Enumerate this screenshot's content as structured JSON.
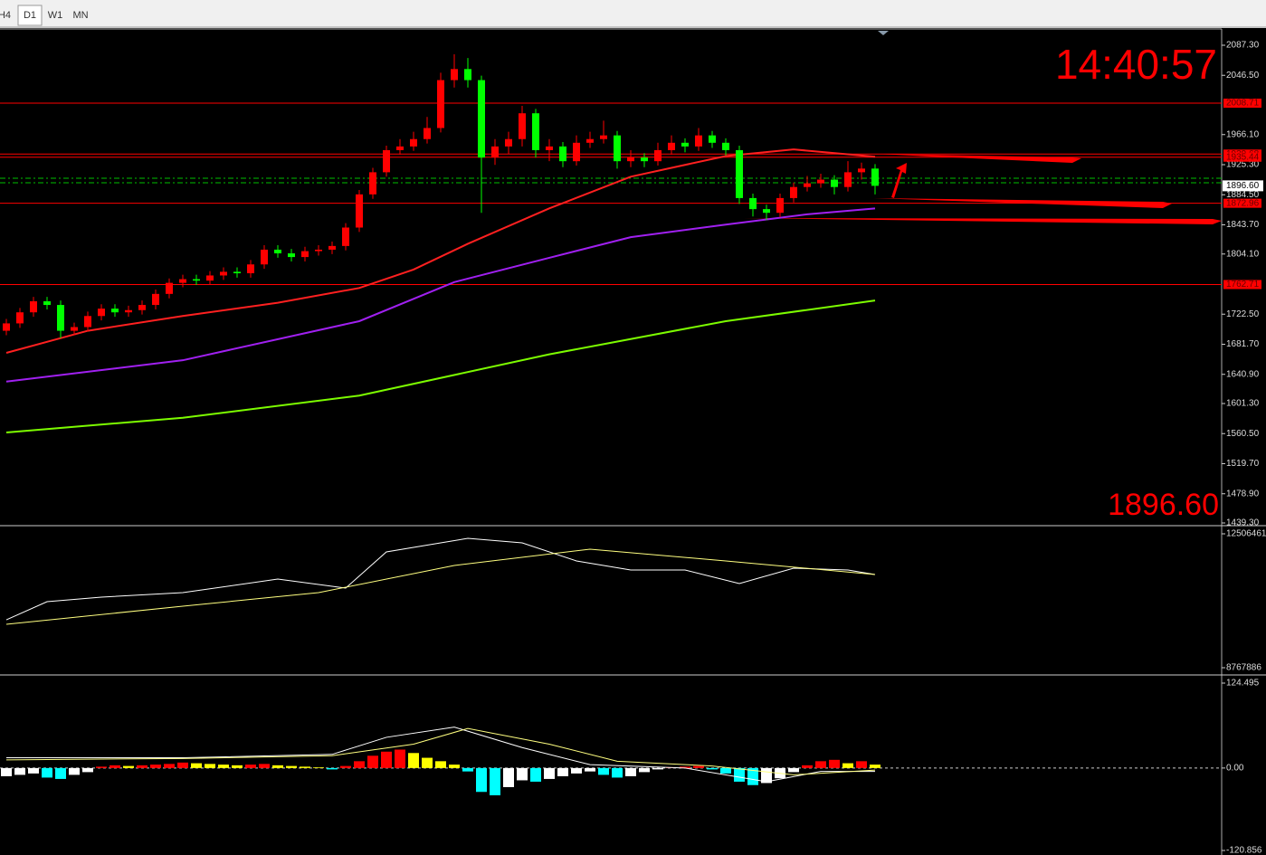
{
  "toolbar": {
    "tabs": [
      "H4",
      "D1",
      "W1",
      "MN"
    ],
    "active": 1
  },
  "clock": "14:40:57",
  "price_chart": {
    "type": "candlestick",
    "ylim": [
      1439.3,
      2087.3
    ],
    "yticks": [
      {
        "value": 2087.3,
        "label": "2087.30"
      },
      {
        "value": 2046.5,
        "label": "2046.50"
      },
      {
        "value": 1966.1,
        "label": "1966.10"
      },
      {
        "value": 1925.3,
        "label": "1925.30"
      },
      {
        "value": 1884.5,
        "label": "1884.50"
      },
      {
        "value": 1843.7,
        "label": "1843.70"
      },
      {
        "value": 1804.1,
        "label": "1804.10"
      },
      {
        "value": 1722.5,
        "label": "1722.50"
      },
      {
        "value": 1681.7,
        "label": "1681.70"
      },
      {
        "value": 1640.9,
        "label": "1640.90"
      },
      {
        "value": 1601.3,
        "label": "1601.30"
      },
      {
        "value": 1560.5,
        "label": "1560.50"
      },
      {
        "value": 1519.7,
        "label": "1519.70"
      },
      {
        "value": 1478.9,
        "label": "1478.90"
      },
      {
        "value": 1439.3,
        "label": "1439.30"
      }
    ],
    "levels": [
      2008.71,
      1939.68,
      1935.44,
      1872.96,
      1762.71
    ],
    "level_color": "#ff0000",
    "bid": {
      "value": 1896.6,
      "label": "1896.60"
    },
    "candle_colors": {
      "up": "#ff0000",
      "down": "#00ff00"
    },
    "candles": [
      [
        1700,
        1716,
        1694,
        1710
      ],
      [
        1710,
        1731,
        1704,
        1725
      ],
      [
        1725,
        1746,
        1719,
        1740
      ],
      [
        1740,
        1746,
        1729,
        1735
      ],
      [
        1735,
        1741,
        1690,
        1700
      ],
      [
        1700,
        1711,
        1694,
        1705
      ],
      [
        1705,
        1726,
        1699,
        1720
      ],
      [
        1720,
        1736,
        1714,
        1730
      ],
      [
        1730,
        1736,
        1719,
        1725
      ],
      [
        1725,
        1734,
        1719,
        1728
      ],
      [
        1728,
        1741,
        1722,
        1735
      ],
      [
        1735,
        1756,
        1729,
        1750
      ],
      [
        1750,
        1771,
        1744,
        1765
      ],
      [
        1765,
        1776,
        1759,
        1770
      ],
      [
        1770,
        1776,
        1762,
        1768
      ],
      [
        1768,
        1781,
        1762,
        1775
      ],
      [
        1775,
        1786,
        1769,
        1780
      ],
      [
        1780,
        1786,
        1772,
        1778
      ],
      [
        1778,
        1796,
        1772,
        1790
      ],
      [
        1790,
        1816,
        1784,
        1810
      ],
      [
        1810,
        1816,
        1799,
        1805
      ],
      [
        1805,
        1811,
        1794,
        1800
      ],
      [
        1800,
        1814,
        1794,
        1808
      ],
      [
        1808,
        1816,
        1802,
        1810
      ],
      [
        1810,
        1821,
        1804,
        1815
      ],
      [
        1815,
        1846,
        1809,
        1840
      ],
      [
        1840,
        1891,
        1834,
        1885
      ],
      [
        1885,
        1921,
        1879,
        1915
      ],
      [
        1915,
        1951,
        1909,
        1945
      ],
      [
        1945,
        1960,
        1939,
        1950
      ],
      [
        1950,
        1970,
        1944,
        1960
      ],
      [
        1960,
        1990,
        1954,
        1975
      ],
      [
        1975,
        2050,
        1969,
        2040
      ],
      [
        2040,
        2075,
        2030,
        2055
      ],
      [
        2055,
        2070,
        2030,
        2040
      ],
      [
        2040,
        2046,
        1860,
        1935
      ],
      [
        1935,
        1960,
        1925,
        1950
      ],
      [
        1950,
        1970,
        1940,
        1960
      ],
      [
        1960,
        2005,
        1950,
        1995
      ],
      [
        1995,
        2001,
        1935,
        1945
      ],
      [
        1945,
        1960,
        1930,
        1950
      ],
      [
        1950,
        1956,
        1922,
        1930
      ],
      [
        1930,
        1965,
        1924,
        1955
      ],
      [
        1955,
        1970,
        1948,
        1960
      ],
      [
        1960,
        1985,
        1954,
        1965
      ],
      [
        1965,
        1971,
        1920,
        1930
      ],
      [
        1930,
        1945,
        1922,
        1935
      ],
      [
        1935,
        1941,
        1922,
        1930
      ],
      [
        1930,
        1955,
        1924,
        1945
      ],
      [
        1945,
        1965,
        1939,
        1955
      ],
      [
        1955,
        1961,
        1942,
        1950
      ],
      [
        1950,
        1975,
        1944,
        1965
      ],
      [
        1965,
        1971,
        1948,
        1955
      ],
      [
        1955,
        1961,
        1938,
        1945
      ],
      [
        1945,
        1951,
        1872,
        1880
      ],
      [
        1880,
        1886,
        1855,
        1865
      ],
      [
        1865,
        1871,
        1850,
        1860
      ],
      [
        1860,
        1886,
        1854,
        1880
      ],
      [
        1880,
        1901,
        1874,
        1895
      ],
      [
        1895,
        1910,
        1889,
        1900
      ],
      [
        1900,
        1913,
        1894,
        1905
      ],
      [
        1905,
        1911,
        1885,
        1895
      ],
      [
        1895,
        1930,
        1889,
        1915
      ],
      [
        1915,
        1928,
        1905,
        1920
      ],
      [
        1920,
        1926,
        1885,
        1896.6
      ]
    ],
    "moving_averages": [
      {
        "color": "#ff2020",
        "x": [
          0,
          6,
          13,
          20,
          26,
          30,
          34,
          40,
          46,
          53,
          58,
          64
        ],
        "values": [
          1670,
          1700,
          1720,
          1738,
          1758,
          1783,
          1818,
          1866,
          1909,
          1937,
          1946,
          1936
        ]
      },
      {
        "color": "#a020f0",
        "x": [
          0,
          13,
          26,
          33,
          40,
          46,
          53,
          59,
          64
        ],
        "values": [
          1631,
          1660,
          1713,
          1766,
          1799,
          1827,
          1844,
          1858,
          1866
        ]
      },
      {
        "color": "#7cfc00",
        "x": [
          0,
          13,
          26,
          40,
          53,
          64
        ],
        "values": [
          1562,
          1582,
          1612,
          1668,
          1713,
          1741
        ]
      }
    ]
  },
  "volume_panel": {
    "ylim": [
      8767886,
      12506461
    ],
    "yticks": [
      12506461,
      8767886
    ],
    "series": [
      {
        "color": "#ffffff",
        "x": [
          0,
          3,
          7,
          13,
          20,
          25,
          28,
          32,
          34,
          38,
          42,
          46,
          50,
          54,
          58,
          62,
          64
        ],
        "values": [
          10106000,
          10612000,
          10738000,
          10864000,
          11243000,
          10991000,
          12001000,
          12254000,
          12380000,
          12254000,
          11749000,
          11496000,
          11496000,
          11117000,
          11547000,
          11496000,
          11370000
        ]
      },
      {
        "color": "#ffff80",
        "x": [
          0,
          13,
          23,
          33,
          43,
          53,
          64
        ],
        "values": [
          9980000,
          10486000,
          10864000,
          11622000,
          12077000,
          11749000,
          11370000
        ]
      }
    ]
  },
  "macd_panel": {
    "ylim": [
      -120.856,
      124.495
    ],
    "yticks": [
      124.495,
      {
        "value": 0,
        "label": "0.00"
      },
      -120.856
    ],
    "histogram": [
      -12,
      -10,
      -8,
      -14,
      -16,
      -10,
      -6,
      2,
      4,
      3,
      4,
      5,
      6,
      8,
      7,
      6,
      5,
      4,
      5,
      6,
      4,
      3,
      2,
      1,
      -2,
      3,
      10,
      18,
      24,
      27,
      22,
      15,
      10,
      5,
      -5,
      -35,
      -40,
      -28,
      -18,
      -20,
      -16,
      -12,
      -8,
      -5,
      -10,
      -14,
      -12,
      -6,
      -2,
      1,
      2,
      3,
      -2,
      -8,
      -20,
      -25,
      -22,
      -15,
      -6,
      4,
      10,
      12,
      7,
      10,
      5
    ],
    "histogram_colors": {
      "up_rising": "#ff0000",
      "up_falling": "#ffff00",
      "down_falling": "#00ffff",
      "down_rising": "#ffffff"
    },
    "series": [
      {
        "color": "#ffffff",
        "x": [
          0,
          13,
          24,
          28,
          33,
          38,
          43,
          50,
          56,
          60,
          64
        ],
        "values": [
          15,
          15,
          20,
          45,
          60,
          30,
          5,
          0,
          -20,
          -5,
          -5
        ]
      },
      {
        "color": "#ffff80",
        "x": [
          0,
          13,
          24,
          30,
          34,
          40,
          45,
          52,
          58,
          64
        ],
        "values": [
          12,
          14,
          18,
          35,
          58,
          35,
          10,
          3,
          -10,
          -3
        ]
      }
    ]
  }
}
